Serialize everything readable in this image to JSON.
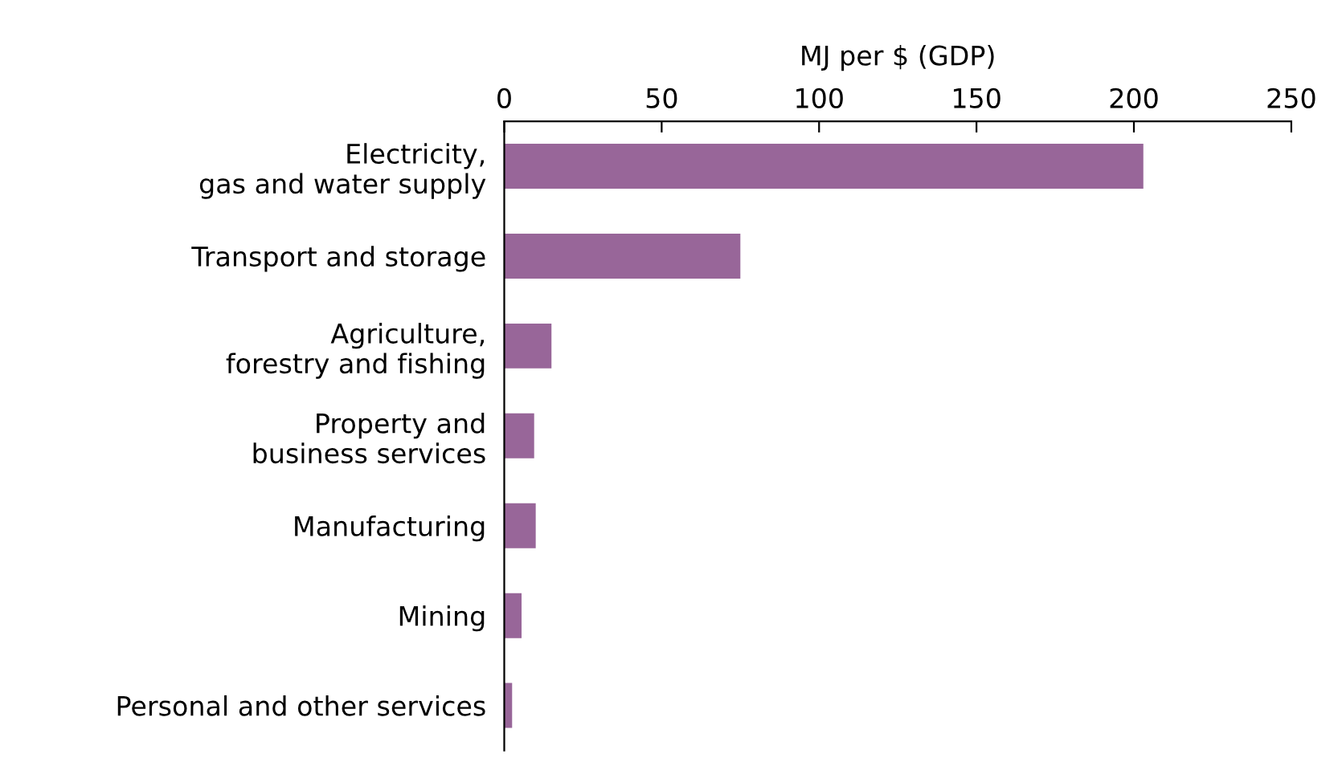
{
  "chart_data": {
    "type": "bar",
    "orientation": "horizontal",
    "xlabel": "MJ per $ (GDP)",
    "categories": [
      "Electricity,\ngas and water supply",
      "Transport and storage",
      "Agriculture,\nforestry and fishing",
      "Property and\nbusiness services",
      "Manufacturing",
      "Mining",
      "Personal and other services"
    ],
    "values": [
      203,
      75,
      15,
      9.5,
      10,
      5.5,
      2.5
    ],
    "color": "#986699",
    "xlim": [
      0,
      250
    ],
    "xticks": [
      0,
      50,
      100,
      150,
      200,
      250
    ],
    "grid": false
  }
}
